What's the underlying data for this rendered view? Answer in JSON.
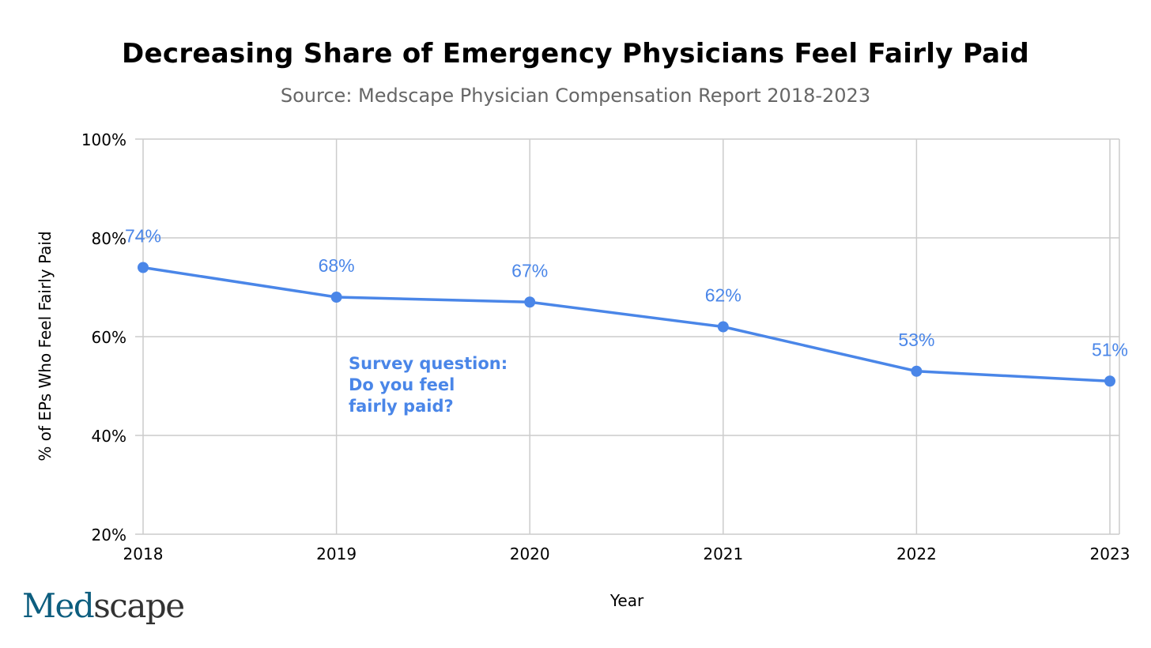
{
  "chart_data": {
    "type": "line",
    "title": "Decreasing Share of Emergency Physicians Feel Fairly Paid",
    "subtitle": "Source: Medscape Physician Compensation Report 2018-2023",
    "xlabel": "Year",
    "ylabel": "% of EPs Who Feel Fairly Paid",
    "categories": [
      "2018",
      "2019",
      "2020",
      "2021",
      "2022",
      "2023"
    ],
    "series": [
      {
        "values": [
          74,
          68,
          67,
          62,
          53,
          51
        ],
        "data_labels": [
          "74%",
          "68%",
          "67%",
          "62%",
          "53%",
          "51%"
        ]
      }
    ],
    "ylim": [
      20,
      100
    ],
    "yticks": [
      20,
      40,
      60,
      80,
      100
    ],
    "ytick_labels": [
      "20%",
      "40%",
      "60%",
      "80%",
      "100%"
    ],
    "grid": true,
    "annotation": [
      "Survey question:",
      "Do you feel",
      "fairly paid?"
    ],
    "colors": {
      "line": "#4a86e8",
      "grid": "#cccccc",
      "annotation": "#4a86e8"
    }
  },
  "logo": {
    "part1": "Med",
    "part2": "scape"
  }
}
